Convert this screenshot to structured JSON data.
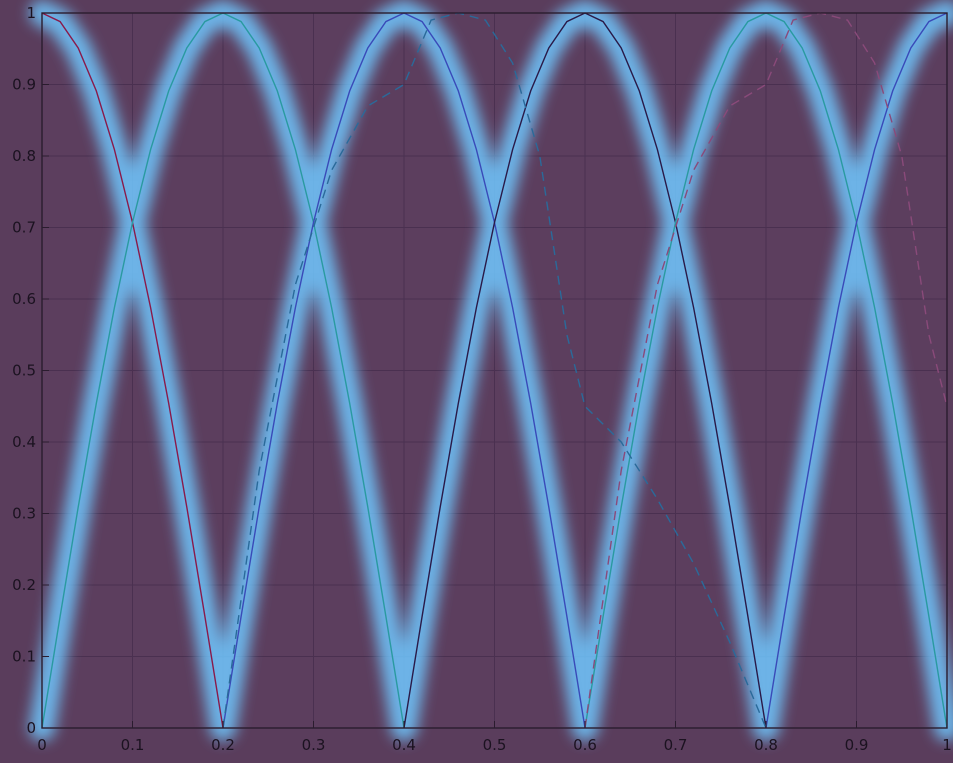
{
  "chart_data": {
    "type": "line",
    "title": "",
    "xlabel": "",
    "ylabel": "",
    "xlim": [
      0,
      1
    ],
    "ylim": [
      0,
      1
    ],
    "grid": true,
    "xticks": [
      "0",
      "0.1",
      "0.2",
      "0.3",
      "0.4",
      "0.5",
      "0.6",
      "0.7",
      "0.8",
      "0.9",
      "1"
    ],
    "yticks": [
      "0",
      "0.1",
      "0.2",
      "0.3",
      "0.4",
      "0.5",
      "0.6",
      "0.7",
      "0.8",
      "0.9",
      "1"
    ],
    "colors": {
      "background": "#5a3d5c",
      "plot_area": "#5c3e5e",
      "grid": "#4a3050",
      "axes": "#2a1c2e",
      "highlight_glow": "#6fc8ff"
    },
    "series": [
      {
        "color": "#8a1a4a",
        "style": "solid",
        "x": [
          0,
          0.02,
          0.04,
          0.06,
          0.08,
          0.1,
          0.12,
          0.14,
          0.16,
          0.18,
          0.2
        ],
        "y": [
          1,
          0.988,
          0.951,
          0.891,
          0.809,
          0.707,
          0.588,
          0.454,
          0.309,
          0.156,
          0
        ]
      },
      {
        "color": "#2a9aa0",
        "style": "solid",
        "x": [
          0,
          0.02,
          0.04,
          0.06,
          0.08,
          0.1,
          0.12,
          0.14,
          0.16,
          0.18,
          0.2,
          0.22,
          0.24,
          0.26,
          0.28,
          0.3,
          0.32,
          0.34,
          0.36,
          0.38,
          0.4
        ],
        "y": [
          0,
          0.156,
          0.309,
          0.454,
          0.588,
          0.707,
          0.809,
          0.891,
          0.951,
          0.988,
          1,
          0.988,
          0.951,
          0.891,
          0.809,
          0.707,
          0.588,
          0.454,
          0.309,
          0.156,
          0
        ]
      },
      {
        "color": "#3a4ab8",
        "style": "solid",
        "x": [
          0.2,
          0.22,
          0.24,
          0.26,
          0.28,
          0.3,
          0.32,
          0.34,
          0.36,
          0.38,
          0.4,
          0.42,
          0.44,
          0.46,
          0.48,
          0.5,
          0.52,
          0.54,
          0.56,
          0.58,
          0.6
        ],
        "y": [
          0,
          0.156,
          0.309,
          0.454,
          0.588,
          0.707,
          0.809,
          0.891,
          0.951,
          0.988,
          1,
          0.988,
          0.951,
          0.891,
          0.809,
          0.707,
          0.588,
          0.454,
          0.309,
          0.156,
          0
        ]
      },
      {
        "color": "#2a1a48",
        "style": "solid",
        "x": [
          0.4,
          0.42,
          0.44,
          0.46,
          0.48,
          0.5,
          0.52,
          0.54,
          0.56,
          0.58,
          0.6,
          0.62,
          0.64,
          0.66,
          0.68,
          0.7,
          0.72,
          0.74,
          0.76,
          0.78,
          0.8
        ],
        "y": [
          0,
          0.156,
          0.309,
          0.454,
          0.588,
          0.707,
          0.809,
          0.891,
          0.951,
          0.988,
          1,
          0.988,
          0.951,
          0.891,
          0.809,
          0.707,
          0.588,
          0.454,
          0.309,
          0.156,
          0
        ]
      },
      {
        "color": "#2a9aa0",
        "style": "solid",
        "x": [
          0.6,
          0.62,
          0.64,
          0.66,
          0.68,
          0.7,
          0.72,
          0.74,
          0.76,
          0.78,
          0.8,
          0.82,
          0.84,
          0.86,
          0.88,
          0.9,
          0.92,
          0.94,
          0.96,
          0.98,
          1
        ],
        "y": [
          0,
          0.156,
          0.309,
          0.454,
          0.588,
          0.707,
          0.809,
          0.891,
          0.951,
          0.988,
          1,
          0.988,
          0.951,
          0.891,
          0.809,
          0.707,
          0.588,
          0.454,
          0.309,
          0.156,
          0
        ]
      },
      {
        "color": "#3a4ab8",
        "style": "solid",
        "x": [
          0.8,
          0.82,
          0.84,
          0.86,
          0.88,
          0.9,
          0.92,
          0.94,
          0.96,
          0.98,
          1
        ],
        "y": [
          0,
          0.156,
          0.309,
          0.454,
          0.588,
          0.707,
          0.809,
          0.891,
          0.951,
          0.988,
          1
        ]
      },
      {
        "color": "#2a6a9a",
        "style": "dashed",
        "x": [
          0.2,
          0.24,
          0.28,
          0.32,
          0.36,
          0.4,
          0.43,
          0.46,
          0.49,
          0.52,
          0.55,
          0.58,
          0.6,
          0.64,
          0.68,
          0.72,
          0.76,
          0.8
        ],
        "y": [
          0,
          0.36,
          0.62,
          0.78,
          0.87,
          0.9,
          0.99,
          1,
          0.99,
          0.93,
          0.8,
          0.55,
          0.45,
          0.4,
          0.32,
          0.23,
          0.12,
          0
        ]
      },
      {
        "color": "#8a4a7a",
        "style": "dashed",
        "x": [
          0.6,
          0.64,
          0.68,
          0.72,
          0.76,
          0.8,
          0.83,
          0.86,
          0.89,
          0.92,
          0.95,
          0.98,
          1
        ],
        "y": [
          0,
          0.36,
          0.62,
          0.78,
          0.87,
          0.9,
          0.99,
          1,
          0.99,
          0.93,
          0.8,
          0.55,
          0.45
        ]
      }
    ]
  }
}
